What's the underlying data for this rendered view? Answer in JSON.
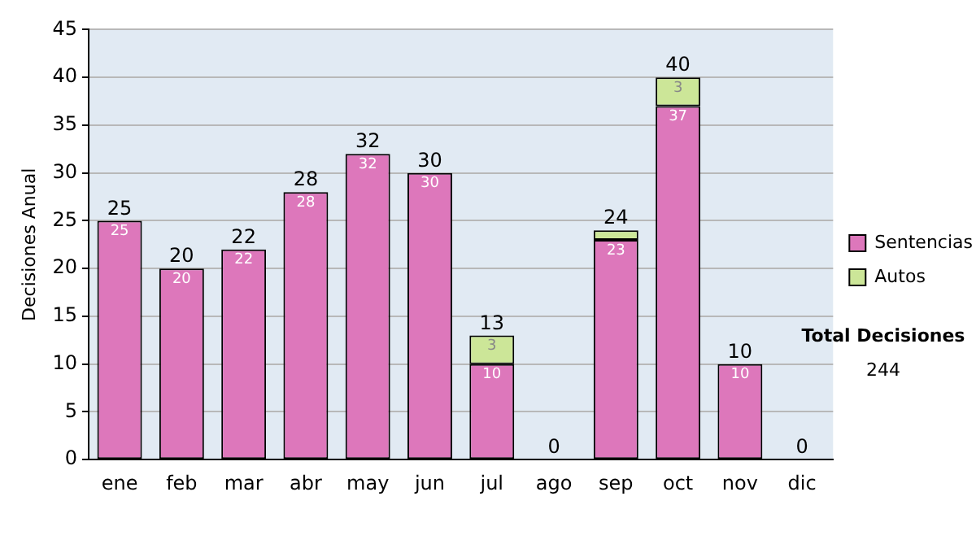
{
  "chart_data": {
    "type": "bar",
    "stacked": true,
    "ylabel": "Decisiones Anual",
    "categories": [
      "ene",
      "feb",
      "mar",
      "abr",
      "may",
      "jun",
      "jul",
      "ago",
      "sep",
      "oct",
      "nov",
      "dic"
    ],
    "series": [
      {
        "name": "Sentencias",
        "color": "#dd77bb",
        "values": [
          25,
          20,
          22,
          28,
          32,
          30,
          10,
          0,
          23,
          37,
          10,
          0
        ],
        "value_labels": [
          "25",
          "20",
          "22",
          "28",
          "32",
          "30",
          "10",
          null,
          "23",
          "37",
          "10",
          null
        ]
      },
      {
        "name": "Autos",
        "color": "#cce698",
        "values": [
          0,
          0,
          0,
          0,
          0,
          0,
          3,
          0,
          1,
          3,
          0,
          0
        ],
        "value_labels": [
          null,
          null,
          null,
          null,
          null,
          null,
          "3",
          null,
          null,
          "3",
          null,
          null
        ]
      }
    ],
    "totals": [
      "25",
      "20",
      "22",
      "28",
      "32",
      "30",
      "13",
      "0",
      "24",
      "40",
      "10",
      "0"
    ],
    "ylim": [
      0,
      45
    ],
    "yticks": [
      0,
      5,
      10,
      15,
      20,
      25,
      30,
      35,
      40,
      45
    ],
    "grid": "y",
    "legend": "right",
    "annotations": [
      "Total Decisiones",
      "244"
    ]
  }
}
